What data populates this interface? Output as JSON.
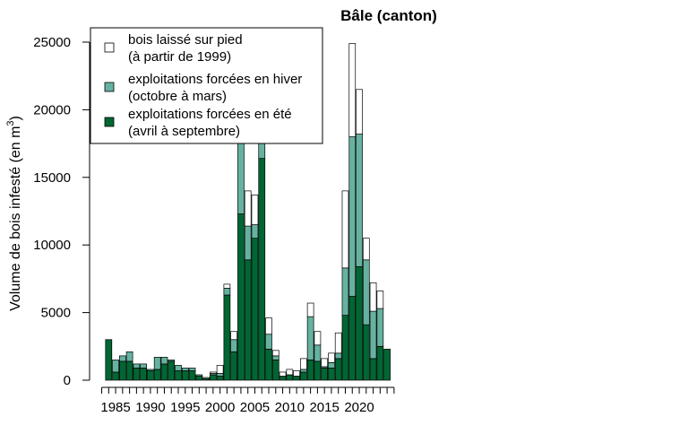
{
  "chart_data": {
    "type": "bar",
    "stacked": true,
    "title": "Bâle (canton)",
    "ylabel": "Volume de bois infesté (en m",
    "ylabel_sup": "3",
    "ylabel_close": ")",
    "xlabel": "",
    "ylim": [
      0,
      25000
    ],
    "yticks": [
      0,
      5000,
      10000,
      15000,
      20000,
      25000
    ],
    "xticks": [
      1985,
      1990,
      1995,
      2000,
      2005,
      2010,
      2015,
      2020
    ],
    "grid": false,
    "legend_position": "top-left",
    "x": [
      1984,
      1985,
      1986,
      1987,
      1988,
      1989,
      1990,
      1991,
      1992,
      1993,
      1994,
      1995,
      1996,
      1997,
      1998,
      1999,
      2000,
      2001,
      2002,
      2003,
      2004,
      2005,
      2006,
      2007,
      2008,
      2009,
      2010,
      2011,
      2012,
      2013,
      2014,
      2015,
      2016,
      2017,
      2018,
      2019,
      2020,
      2021,
      2022,
      2023,
      2024
    ],
    "series": [
      {
        "name": "exploitations forcées en été",
        "legend_lines": [
          "exploitations forcées en été",
          "(avril à septembre)"
        ],
        "color": "#006633",
        "values": [
          3000,
          600,
          1400,
          1400,
          900,
          900,
          700,
          800,
          1200,
          1400,
          700,
          700,
          700,
          300,
          100,
          400,
          300,
          6300,
          2100,
          12300,
          8900,
          10500,
          16400,
          2300,
          1500,
          300,
          400,
          300,
          600,
          1500,
          1400,
          900,
          900,
          1600,
          4800,
          6200,
          8400,
          4100,
          1600,
          2500,
          2300
        ]
      },
      {
        "name": "exploitations forcées en hiver",
        "legend_lines": [
          "exploitations forcées en hiver",
          "(octobre à mars)"
        ],
        "color": "#66b2a0",
        "values": [
          0,
          900,
          400,
          700,
          300,
          300,
          100,
          900,
          500,
          100,
          400,
          200,
          200,
          100,
          100,
          100,
          200,
          500,
          900,
          6500,
          2500,
          1000,
          5400,
          1100,
          300,
          0,
          0,
          0,
          200,
          3200,
          1200,
          100,
          400,
          400,
          3500,
          11800,
          9800,
          4800,
          3500,
          2800,
          0
        ]
      },
      {
        "name": "bois laissé sur pied",
        "legend_lines": [
          "bois laissé sur pied",
          "(à partir de 1999)"
        ],
        "color": "#ffffff",
        "values": [
          0,
          0,
          0,
          0,
          0,
          0,
          0,
          0,
          0,
          0,
          0,
          0,
          0,
          0,
          0,
          100,
          600,
          300,
          600,
          2800,
          2600,
          2200,
          1400,
          1200,
          400,
          300,
          400,
          400,
          800,
          1000,
          1000,
          600,
          700,
          1500,
          5700,
          6900,
          3300,
          1600,
          2100,
          1300,
          0
        ]
      }
    ]
  }
}
